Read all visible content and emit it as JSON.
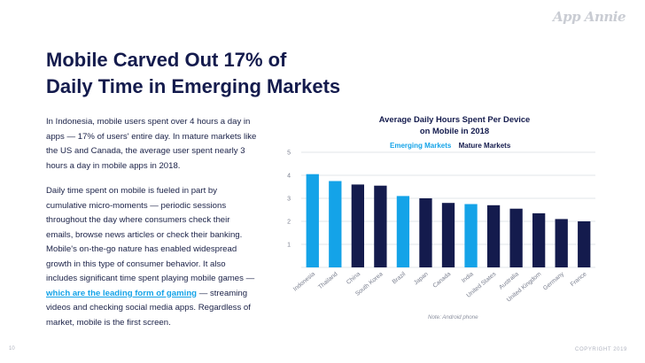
{
  "brand": {
    "logo_text": "App Annie"
  },
  "slide": {
    "title_line1": "Mobile Carved Out 17% of",
    "title_line2": "Daily Time in Emerging Markets",
    "paragraph1": "In Indonesia, mobile users spent over 4 hours a day in apps — 17% of users' entire day. In mature markets like the US and Canada, the average user spent nearly 3 hours a day in mobile apps in 2018.",
    "paragraph2_before": "Daily time spent on mobile is fueled in part by cumulative micro-moments — periodic sessions throughout the day where consumers check their emails, browse news articles or check their banking. Mobile's on-the-go nature has enabled widespread growth in this type of consumer behavior. It also includes significant time spent playing mobile games — ",
    "paragraph2_link": "which are the leading form of gaming",
    "paragraph2_after": " — streaming videos and checking social media apps. Regardless of market, mobile is the first screen.",
    "note": "Note: Android phone",
    "page_number": "10",
    "copyright": "COPYRIGHT 2019"
  },
  "colors": {
    "emerging": "#14a3e8",
    "mature": "#141b4d",
    "grid": "#d9dce3",
    "axis_text": "#7a7f8f"
  },
  "chart_data": {
    "type": "bar",
    "title_line1": "Average Daily Hours Spent Per Device",
    "title_line2": "on Mobile in 2018",
    "legend": [
      "Emerging Markets",
      "Mature Markets"
    ],
    "categories": [
      "Indonesia",
      "Thailand",
      "China",
      "South Korea",
      "Brazil",
      "Japan",
      "Canada",
      "India",
      "United States",
      "Australia",
      "United Kingdom",
      "Germany",
      "France"
    ],
    "values": [
      4.05,
      3.75,
      3.6,
      3.55,
      3.1,
      3.0,
      2.8,
      2.75,
      2.7,
      2.55,
      2.35,
      2.1,
      2.0
    ],
    "groups": [
      "Emerging Markets",
      "Emerging Markets",
      "Mature Markets",
      "Mature Markets",
      "Emerging Markets",
      "Mature Markets",
      "Mature Markets",
      "Emerging Markets",
      "Mature Markets",
      "Mature Markets",
      "Mature Markets",
      "Mature Markets",
      "Mature Markets"
    ],
    "yticks": [
      1,
      2,
      3,
      4,
      5
    ],
    "ylim": [
      0,
      5
    ],
    "grid": true,
    "legend_position": "top-left"
  }
}
